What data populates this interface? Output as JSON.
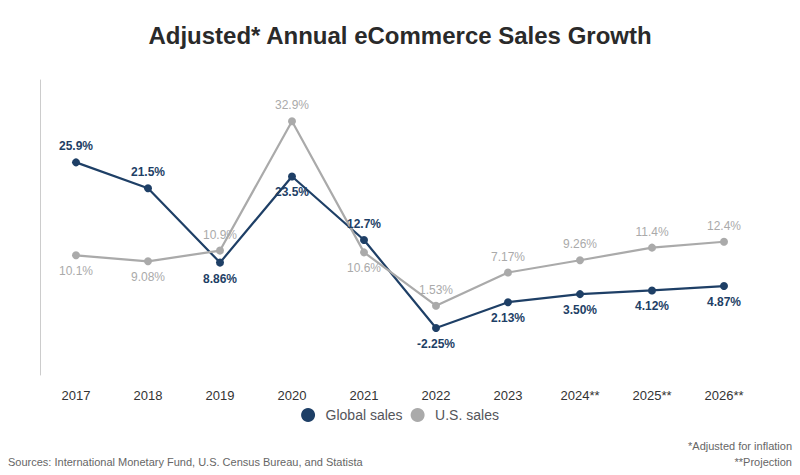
{
  "chart_data": {
    "type": "line",
    "title": "Adjusted* Annual eCommerce Sales Growth",
    "categories": [
      "2017",
      "2018",
      "2019",
      "2020",
      "2021",
      "2022",
      "2023",
      "2024**",
      "2025**",
      "2026**"
    ],
    "series": [
      {
        "name": "Global sales",
        "color": "#1e3f66",
        "values": [
          25.9,
          21.5,
          8.86,
          23.5,
          12.7,
          -2.25,
          2.13,
          3.5,
          4.12,
          4.87
        ],
        "value_labels": [
          "25.9%",
          "21.5%",
          "8.86%",
          "23.5%",
          "12.7%",
          "-2.25%",
          "2.13%",
          "3.50%",
          "4.12%",
          "4.87%"
        ]
      },
      {
        "name": "U.S. sales",
        "color": "#aaaaaa",
        "values": [
          10.1,
          9.08,
          10.9,
          32.9,
          10.6,
          1.53,
          7.17,
          9.26,
          11.4,
          12.4
        ],
        "value_labels": [
          "10.1%",
          "9.08%",
          "10.9%",
          "32.9%",
          "10.6%",
          "1.53%",
          "7.17%",
          "9.26%",
          "11.4%",
          "12.4%"
        ]
      }
    ],
    "ylim": [
      -10.25,
      39.9
    ],
    "tick_labels": "x",
    "grid": false,
    "legend": "bottom",
    "data_labels": true,
    "marker": "circle",
    "annotations": [
      "Sources: International Monetary Fund, U.S. Census Bureau, and Statista",
      "*Adjusted for inflation",
      "**Projection"
    ]
  }
}
